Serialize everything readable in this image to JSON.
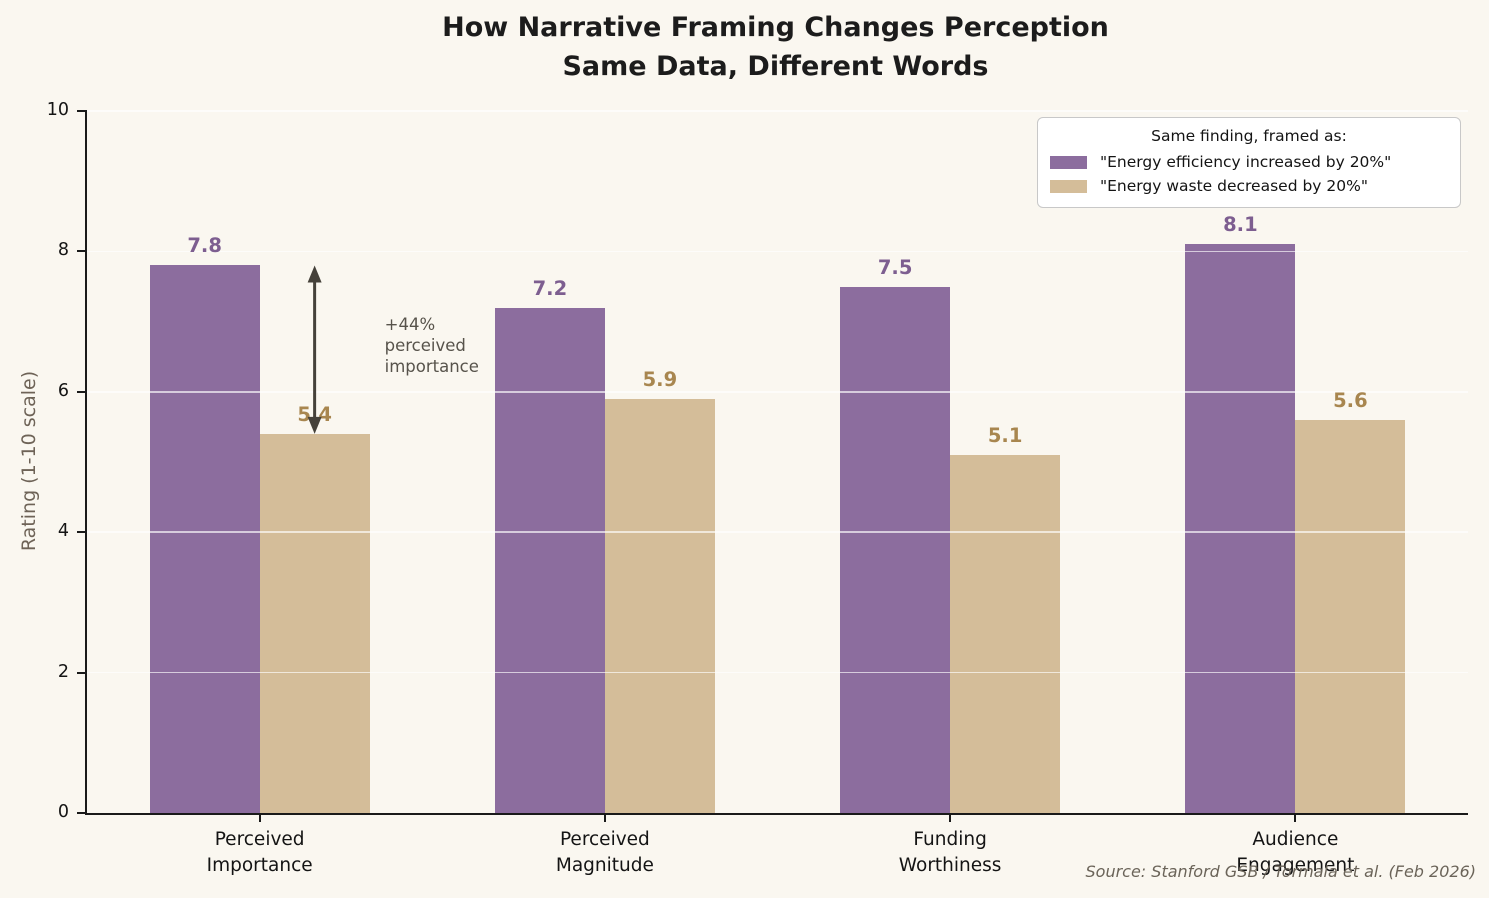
{
  "figure": {
    "background_color": "#faf7f0",
    "source": "Source: Stanford GSB / Tormala et al. (Feb 2026)"
  },
  "chart_data": {
    "type": "bar",
    "title": "How Narrative Framing Changes Perception",
    "subtitle": "Same Data, Different Words",
    "categories": [
      "Perceived\nImportance",
      "Perceived\nMagnitude",
      "Funding\nWorthiness",
      "Audience\nEngagement"
    ],
    "series": [
      {
        "name": "\"Energy efficiency increased by 20%\"",
        "color": "#8c6d9e",
        "label_color": "#7d5e90",
        "values": [
          7.8,
          7.2,
          7.5,
          8.1
        ]
      },
      {
        "name": "\"Energy waste decreased by 20%\"",
        "color": "#d4bd99",
        "label_color": "#a8864f",
        "values": [
          5.4,
          5.9,
          5.1,
          5.6
        ]
      }
    ],
    "legend_title": "Same finding, framed as:",
    "legend_position": "upper right",
    "ylabel": "Rating (1-10 scale)",
    "ylim": [
      0,
      10
    ],
    "yticks": [
      0,
      2,
      4,
      6,
      8,
      10
    ],
    "grid": "horizontal",
    "annotation": {
      "text": "+44%\nperceived\nimportance",
      "arrow_from_value": 5.4,
      "arrow_to_value": 7.8,
      "arrow_color": "#45413a",
      "group": "Perceived Importance"
    }
  }
}
